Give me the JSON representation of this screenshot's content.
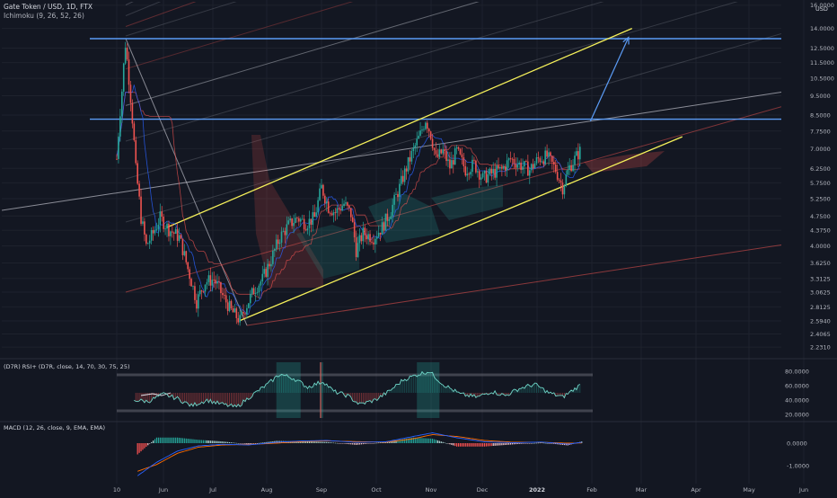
{
  "header": {
    "symbol_line": "Gate Token / USD, 1D, FTX",
    "ichimoku_line": "Ichimoku (9, 26, 52, 26)",
    "currency": "USD"
  },
  "colors": {
    "background": "#131722",
    "grid": "#1e222d",
    "up": "#26a69a",
    "down": "#ef5350",
    "channel": "#f5f05a",
    "level": "#5b9cf6",
    "rsi_line": "#6fd6c8",
    "macd_line": "#2962ff",
    "signal_line": "#ff6d00",
    "text": "#b2b5be"
  },
  "price_axis": {
    "scale": "log",
    "ticks": [
      "16.0000",
      "14.0000",
      "12.5000",
      "11.5000",
      "10.5000",
      "9.5000",
      "8.5000",
      "7.7500",
      "7.0000",
      "6.2500",
      "5.7500",
      "5.2500",
      "4.7500",
      "4.3750",
      "4.0000",
      "3.6250",
      "3.3125",
      "3.0625",
      "2.8125",
      "2.5940",
      "2.4065",
      "2.2310"
    ]
  },
  "time_axis": {
    "labels": [
      "10",
      "Jun",
      "Jul",
      "Aug",
      "Sep",
      "Oct",
      "Nov",
      "Dec",
      "2022",
      "Feb",
      "Mar",
      "Apr",
      "May",
      "Jun"
    ]
  },
  "rsi_panel": {
    "title": "(D7R) RSI+ (D7R, close, 14, 70, 30, 75, 25)",
    "ticks": [
      "80.0000",
      "60.0000",
      "40.0000",
      "20.0000"
    ],
    "levels": [
      75,
      25
    ]
  },
  "macd_panel": {
    "title": "MACD (12, 26, close, 9, EMA, EMA)",
    "ticks": [
      "0.0000",
      "-1.0000"
    ]
  },
  "chart_data": {
    "type": "candlestick",
    "title": "Gate Token / USD, 1D, FTX",
    "scale": "log",
    "ylim": [
      2.15,
      16.0
    ],
    "x_range": [
      "2021-05-10",
      "2022-06-10"
    ],
    "price_path": [
      [
        "2021-05-10",
        6.6
      ],
      [
        "2021-05-13",
        9.8
      ],
      [
        "2021-05-15",
        12.8
      ],
      [
        "2021-05-17",
        10.5
      ],
      [
        "2021-05-19",
        8.3
      ],
      [
        "2021-05-21",
        6.2
      ],
      [
        "2021-05-24",
        4.7
      ],
      [
        "2021-05-27",
        4.0
      ],
      [
        "2021-05-31",
        4.3
      ],
      [
        "2021-06-04",
        4.7
      ],
      [
        "2021-06-09",
        4.4
      ],
      [
        "2021-06-15",
        4.2
      ],
      [
        "2021-06-20",
        3.5
      ],
      [
        "2021-06-25",
        2.9
      ],
      [
        "2021-06-30",
        3.25
      ],
      [
        "2021-07-05",
        3.3
      ],
      [
        "2021-07-10",
        3.0
      ],
      [
        "2021-07-15",
        2.75
      ],
      [
        "2021-07-20",
        2.6
      ],
      [
        "2021-07-24",
        2.85
      ],
      [
        "2021-07-28",
        3.1
      ],
      [
        "2021-08-02",
        3.3
      ],
      [
        "2021-08-07",
        3.7
      ],
      [
        "2021-08-12",
        4.2
      ],
      [
        "2021-08-17",
        4.5
      ],
      [
        "2021-08-22",
        4.7
      ],
      [
        "2021-08-27",
        4.55
      ],
      [
        "2021-09-01",
        4.7
      ],
      [
        "2021-09-05",
        5.6
      ],
      [
        "2021-09-09",
        5.0
      ],
      [
        "2021-09-13",
        4.85
      ],
      [
        "2021-09-18",
        5.1
      ],
      [
        "2021-09-22",
        4.8
      ],
      [
        "2021-09-25",
        3.9
      ],
      [
        "2021-09-29",
        4.3
      ],
      [
        "2021-10-05",
        4.2
      ],
      [
        "2021-10-10",
        4.45
      ],
      [
        "2021-10-15",
        4.9
      ],
      [
        "2021-10-20",
        5.6
      ],
      [
        "2021-10-26",
        6.6
      ],
      [
        "2021-11-01",
        7.6
      ],
      [
        "2021-11-04",
        8.3
      ],
      [
        "2021-11-07",
        7.6
      ],
      [
        "2021-11-10",
        6.6
      ],
      [
        "2021-11-14",
        6.9
      ],
      [
        "2021-11-18",
        6.3
      ],
      [
        "2021-11-22",
        6.9
      ],
      [
        "2021-11-27",
        6.2
      ],
      [
        "2021-12-02",
        6.4
      ],
      [
        "2021-12-07",
        5.9
      ],
      [
        "2021-12-13",
        6.1
      ],
      [
        "2021-12-18",
        6.2
      ],
      [
        "2021-12-23",
        6.6
      ],
      [
        "2021-12-28",
        6.4
      ],
      [
        "2022-01-03",
        6.2
      ],
      [
        "2022-01-08",
        6.6
      ],
      [
        "2022-01-13",
        6.7
      ],
      [
        "2022-01-18",
        6.2
      ],
      [
        "2022-01-22",
        5.6
      ],
      [
        "2022-01-26",
        6.3
      ],
      [
        "2022-02-01",
        6.9
      ]
    ],
    "horizontal_levels": [
      13.2,
      8.3
    ],
    "ascending_channel": {
      "upper": [
        [
          "2021-06-08",
          4.45
        ],
        [
          "2022-03-03",
          14.0
        ]
      ],
      "lower": [
        [
          "2021-07-20",
          2.6
        ],
        [
          "2022-04-01",
          7.5
        ]
      ]
    },
    "projection_arrow": [
      [
        "2022-02-07",
        8.2
      ],
      [
        "2022-03-01",
        13.3
      ]
    ],
    "rsi": {
      "levels": [
        75,
        25
      ],
      "path": [
        [
          "2021-05-20",
          40
        ],
        [
          "2021-05-28",
          38
        ],
        [
          "2021-06-06",
          48
        ],
        [
          "2021-06-14",
          42
        ],
        [
          "2021-06-22",
          32
        ],
        [
          "2021-07-01",
          40
        ],
        [
          "2021-07-08",
          35
        ],
        [
          "2021-07-18",
          30
        ],
        [
          "2021-07-26",
          45
        ],
        [
          "2021-08-05",
          62
        ],
        [
          "2021-08-12",
          76
        ],
        [
          "2021-08-20",
          70
        ],
        [
          "2021-08-28",
          58
        ],
        [
          "2021-09-06",
          66
        ],
        [
          "2021-09-12",
          52
        ],
        [
          "2021-09-20",
          46
        ],
        [
          "2021-09-27",
          34
        ],
        [
          "2021-10-06",
          40
        ],
        [
          "2021-10-14",
          52
        ],
        [
          "2021-10-22",
          68
        ],
        [
          "2021-10-31",
          76
        ],
        [
          "2021-11-06",
          80
        ],
        [
          "2021-11-14",
          62
        ],
        [
          "2021-11-24",
          48
        ],
        [
          "2021-12-04",
          44
        ],
        [
          "2021-12-12",
          52
        ],
        [
          "2021-12-20",
          46
        ],
        [
          "2021-12-28",
          56
        ],
        [
          "2022-01-06",
          62
        ],
        [
          "2022-01-14",
          50
        ],
        [
          "2022-01-22",
          44
        ],
        [
          "2022-01-28",
          54
        ],
        [
          "2022-02-02",
          62
        ]
      ]
    },
    "macd": {
      "macd_path": [
        [
          "2021-05-22",
          -1.45
        ],
        [
          "2021-06-02",
          -0.85
        ],
        [
          "2021-06-14",
          -0.35
        ],
        [
          "2021-06-26",
          -0.12
        ],
        [
          "2021-07-10",
          -0.05
        ],
        [
          "2021-07-25",
          -0.08
        ],
        [
          "2021-08-10",
          0.04
        ],
        [
          "2021-08-25",
          0.1
        ],
        [
          "2021-09-08",
          0.12
        ],
        [
          "2021-09-25",
          0.04
        ],
        [
          "2021-10-12",
          0.06
        ],
        [
          "2021-10-28",
          0.3
        ],
        [
          "2021-11-08",
          0.46
        ],
        [
          "2021-11-22",
          0.24
        ],
        [
          "2021-12-08",
          0.06
        ],
        [
          "2021-12-25",
          0.02
        ],
        [
          "2022-01-10",
          0.05
        ],
        [
          "2022-01-25",
          -0.04
        ],
        [
          "2022-02-02",
          0.04
        ]
      ],
      "signal_path": [
        [
          "2021-05-22",
          -1.25
        ],
        [
          "2021-06-02",
          -0.95
        ],
        [
          "2021-06-14",
          -0.45
        ],
        [
          "2021-06-26",
          -0.18
        ],
        [
          "2021-07-10",
          -0.08
        ],
        [
          "2021-07-25",
          -0.06
        ],
        [
          "2021-08-10",
          0.0
        ],
        [
          "2021-08-25",
          0.07
        ],
        [
          "2021-09-08",
          0.1
        ],
        [
          "2021-09-25",
          0.07
        ],
        [
          "2021-10-12",
          0.04
        ],
        [
          "2021-10-28",
          0.2
        ],
        [
          "2021-11-08",
          0.38
        ],
        [
          "2021-11-22",
          0.3
        ],
        [
          "2021-12-08",
          0.12
        ],
        [
          "2021-12-25",
          0.04
        ],
        [
          "2022-01-10",
          0.04
        ],
        [
          "2022-01-25",
          0.0
        ],
        [
          "2022-02-02",
          0.01
        ]
      ]
    }
  }
}
